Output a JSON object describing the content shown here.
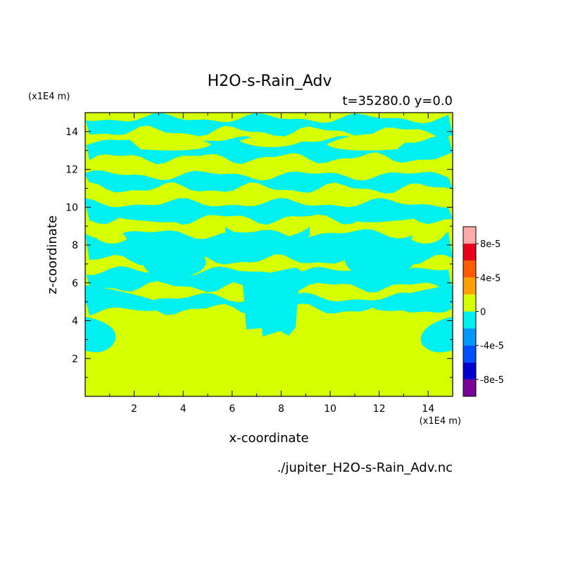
{
  "chart_data": {
    "type": "heatmap",
    "title": "H2O-s-Rain_Adv",
    "subtitle": "t=35280.0 y=0.0",
    "xlabel": "x-coordinate",
    "ylabel": "z-coordinate",
    "x_unit": "(x1E4 m)",
    "y_unit": "(x1E4 m)",
    "footer": "./jupiter_H2O-s-Rain_Adv.nc",
    "xlim": [
      0,
      15
    ],
    "ylim": [
      0,
      15
    ],
    "x_ticks": [
      "2",
      "4",
      "6",
      "8",
      "10",
      "12",
      "14"
    ],
    "y_ticks": [
      "2",
      "4",
      "6",
      "8",
      "10",
      "12",
      "14"
    ],
    "grid": false,
    "colorbar": {
      "labels": [
        "8e-5",
        "4e-5",
        "0",
        "-4e-5",
        "-8e-5"
      ],
      "levels": [
        {
          "from": 8e-05,
          "to": 0.0001,
          "color": "#ffaaaa"
        },
        {
          "from": 6e-05,
          "to": 8e-05,
          "color": "#e8001a"
        },
        {
          "from": 4e-05,
          "to": 6e-05,
          "color": "#ff5a00"
        },
        {
          "from": 2e-05,
          "to": 4e-05,
          "color": "#ffa000"
        },
        {
          "from": 0,
          "to": 2e-05,
          "color": "#d5ff00"
        },
        {
          "from": -2e-05,
          "to": 0,
          "color": "#00f0f0"
        },
        {
          "from": -4e-05,
          "to": -2e-05,
          "color": "#0096ff"
        },
        {
          "from": -6e-05,
          "to": -4e-05,
          "color": "#0050ff"
        },
        {
          "from": -8e-05,
          "to": -6e-05,
          "color": "#0000d0"
        },
        {
          "from": -0.0001,
          "to": -8e-05,
          "color": "#780096"
        }
      ]
    },
    "regions_note": "field is predominantly 0 to 2e-5 (yellow-green) below z=4 except a central intrusion; alternating bands of -2e-5 to 0 (cyan) and 0 to 2e-5 above z=4, cyan layer at top z≈14.5",
    "bands": [
      {
        "z": [
          14.0,
          14.7
        ],
        "value": -1e-05
      },
      {
        "z": [
          12.6,
          13.5
        ],
        "value": -1e-05
      },
      {
        "z": [
          11.0,
          11.7
        ],
        "value": -1e-05
      },
      {
        "z": [
          9.4,
          10.2
        ],
        "value": -1e-05
      },
      {
        "z": [
          7.2,
          8.6
        ],
        "value": -1e-05
      },
      {
        "z": [
          5.8,
          6.6
        ],
        "value": -1e-05
      },
      {
        "z": [
          4.6,
          5.2
        ],
        "value": -1e-05
      }
    ]
  }
}
